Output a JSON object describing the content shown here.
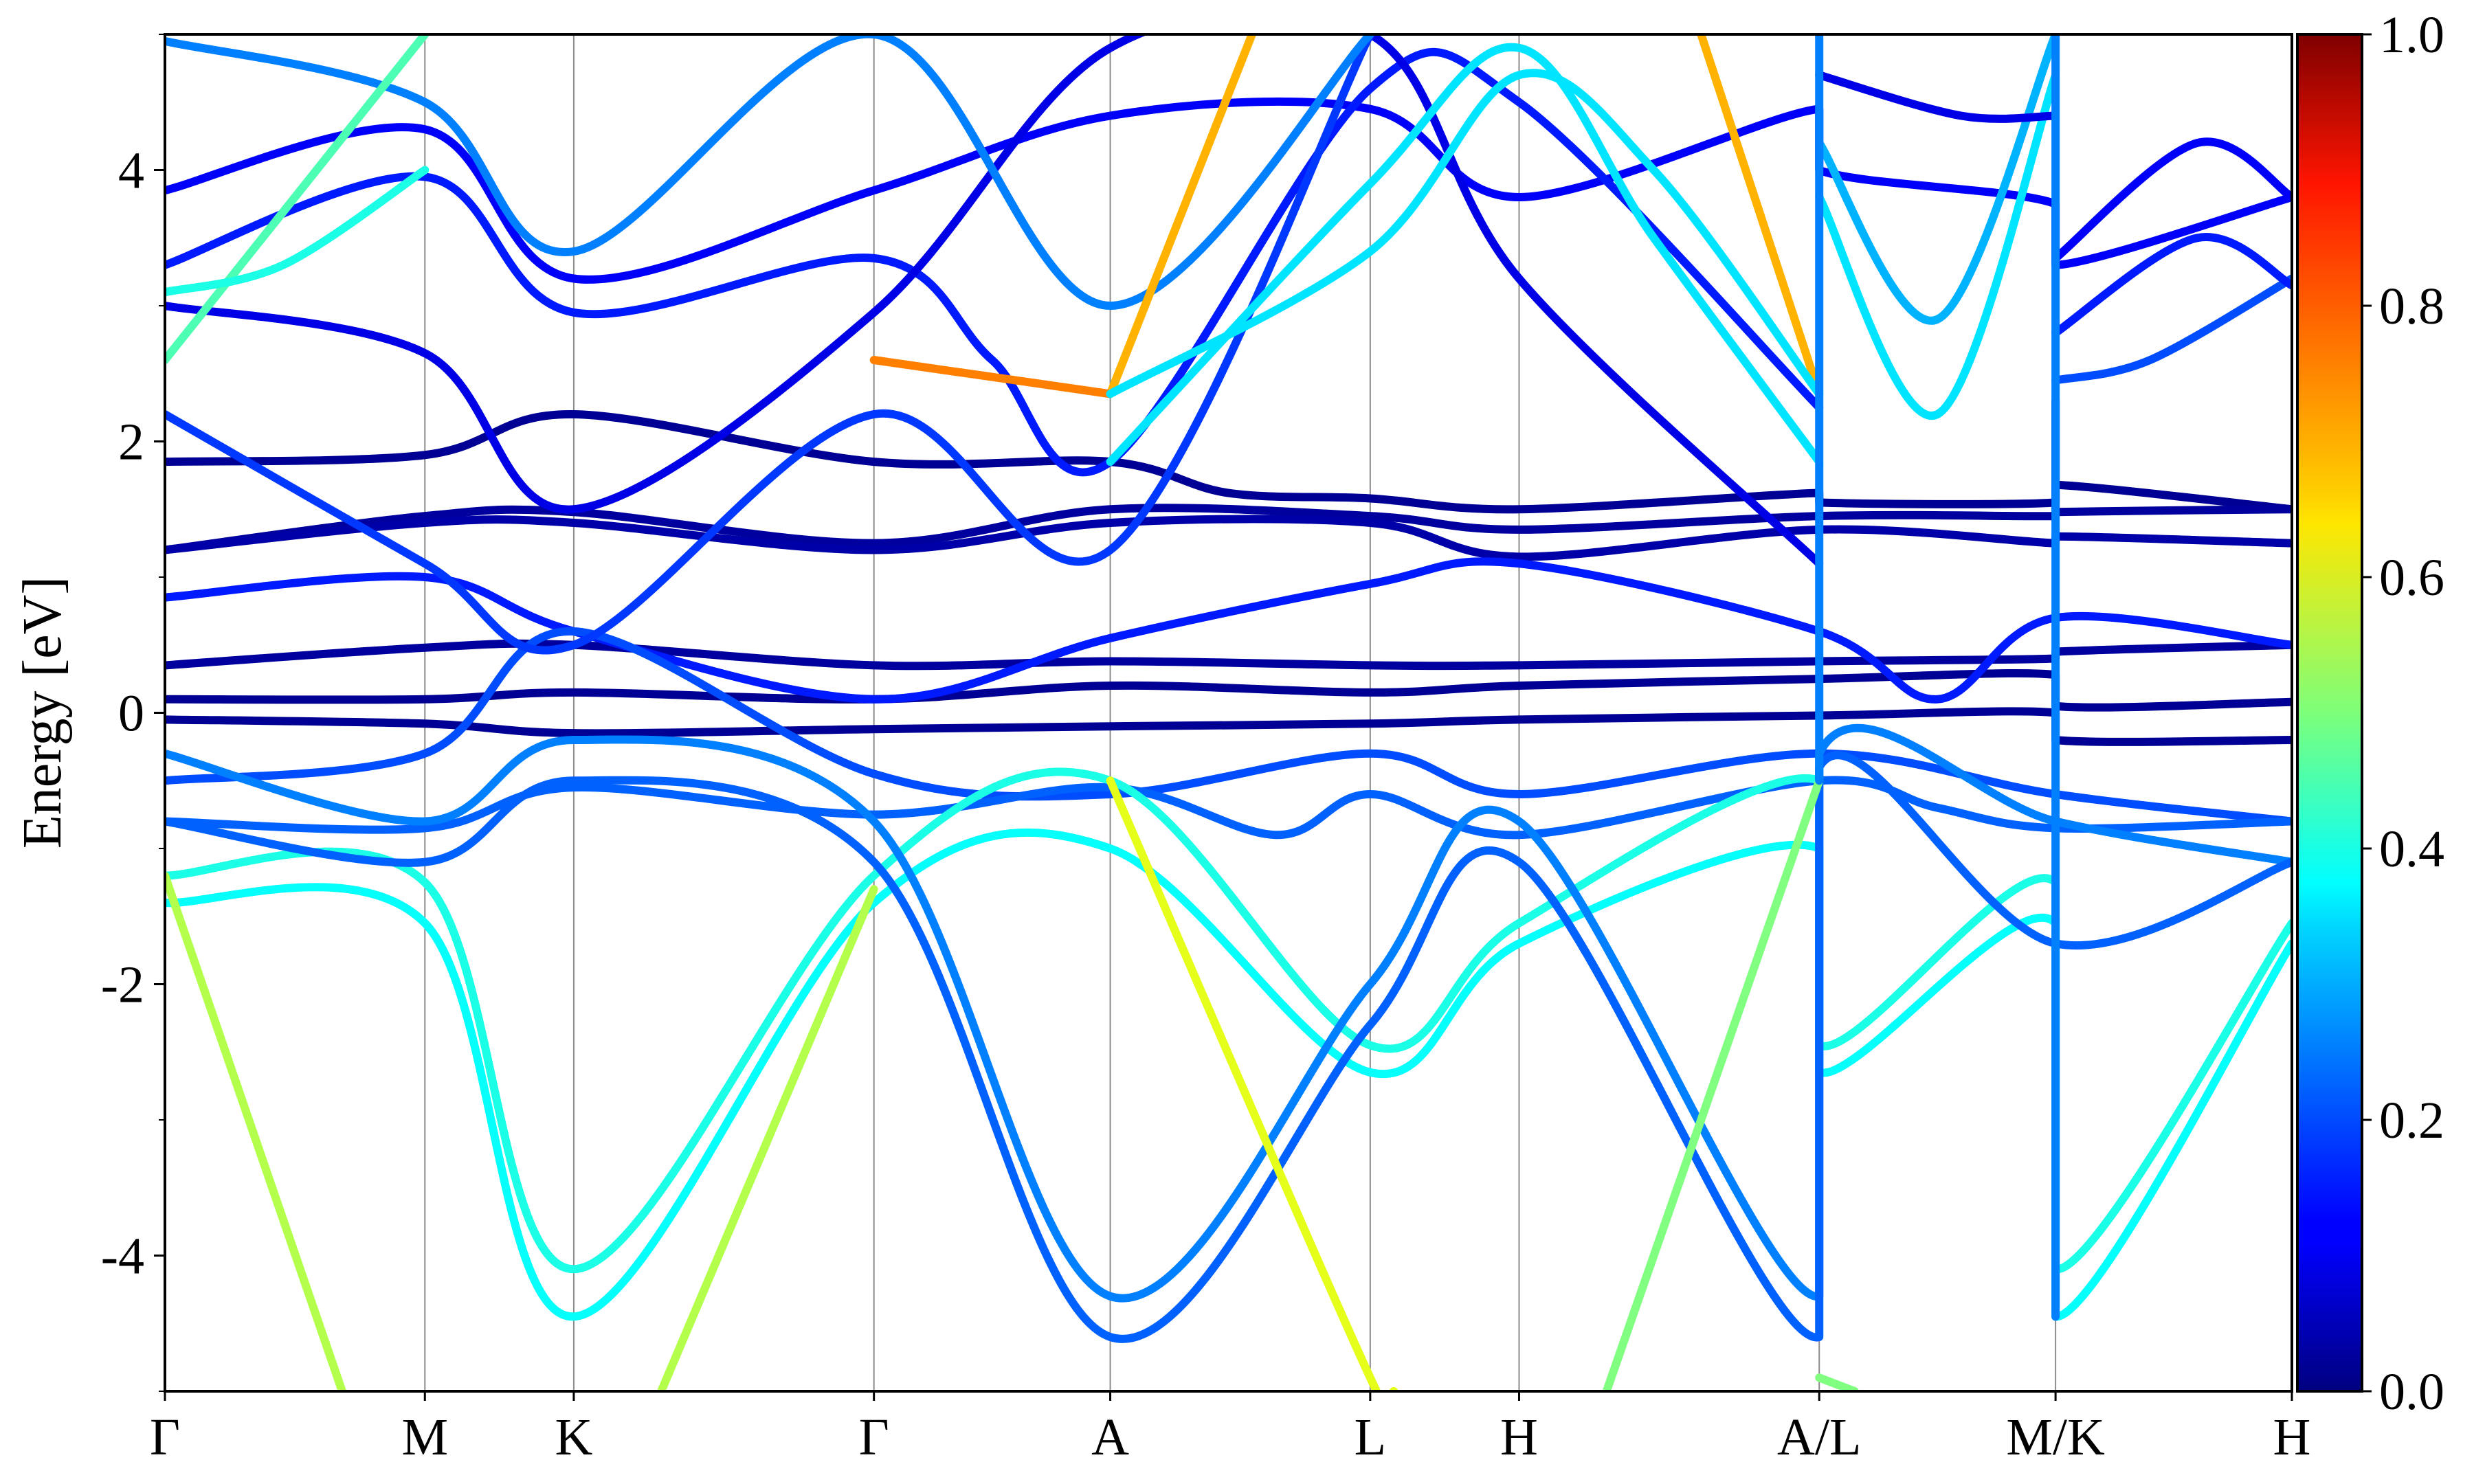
{
  "chart_data": {
    "type": "line",
    "title": "",
    "ylabel": "Energy [eV]",
    "xlabel": "",
    "ylim": [
      -5,
      5
    ],
    "yticks": [
      {
        "value": 4,
        "label": "4"
      },
      {
        "value": 2,
        "label": "2"
      },
      {
        "value": 0,
        "label": "0"
      },
      {
        "value": -2,
        "label": "-2"
      },
      {
        "value": -4,
        "label": "-4"
      }
    ],
    "kpath": {
      "range": [
        0,
        9
      ],
      "points": [
        {
          "label": "Γ",
          "x": 0
        },
        {
          "label": "M",
          "x": 1.1
        },
        {
          "label": "K",
          "x": 1.73
        },
        {
          "label": "Γ",
          "x": 3.0
        },
        {
          "label": "A",
          "x": 4.0
        },
        {
          "label": "L",
          "x": 5.1
        },
        {
          "label": "H",
          "x": 5.73
        },
        {
          "label": "A/L",
          "x": 7.0
        },
        {
          "label": "M/K",
          "x": 8.0
        },
        {
          "label": "H",
          "x": 9.0
        }
      ]
    },
    "colorbar": {
      "colormap": "jet",
      "range": [
        0.0,
        1.0
      ],
      "ticks": [
        {
          "value": 1.0,
          "label": "1.0"
        },
        {
          "value": 0.8,
          "label": "0.8"
        },
        {
          "value": 0.6,
          "label": "0.6"
        },
        {
          "value": 0.4,
          "label": "0.4"
        },
        {
          "value": 0.2,
          "label": "0.2"
        },
        {
          "value": 0.0,
          "label": "0.0"
        }
      ]
    },
    "grid": "vertical lines at high-symmetry points",
    "series": [
      {
        "w": 0.02,
        "pts": [
          [
            0,
            1.85
          ],
          [
            1.1,
            1.9
          ],
          [
            1.73,
            2.2
          ],
          [
            3.0,
            1.85
          ],
          [
            4.0,
            1.85
          ],
          [
            4.5,
            1.62
          ],
          [
            5.1,
            1.58
          ],
          [
            5.73,
            1.5
          ],
          [
            7.0,
            1.62
          ],
          [
            7.0,
            1.55
          ],
          [
            8.0,
            1.55
          ],
          [
            8.0,
            1.68
          ],
          [
            9.0,
            1.5
          ]
        ]
      },
      {
        "w": 0.03,
        "pts": [
          [
            0,
            1.2
          ],
          [
            1.1,
            1.45
          ],
          [
            1.73,
            1.48
          ],
          [
            3.0,
            1.25
          ],
          [
            4.0,
            1.5
          ],
          [
            5.1,
            1.45
          ],
          [
            5.73,
            1.35
          ],
          [
            7.0,
            1.45
          ],
          [
            8.0,
            1.45
          ],
          [
            8.0,
            1.48
          ],
          [
            9.0,
            1.5
          ]
        ]
      },
      {
        "w": 0.04,
        "pts": [
          [
            0,
            1.2
          ],
          [
            1.1,
            1.4
          ],
          [
            1.73,
            1.4
          ],
          [
            3.0,
            1.2
          ],
          [
            4.0,
            1.4
          ],
          [
            5.1,
            1.4
          ],
          [
            5.73,
            1.15
          ],
          [
            7.0,
            1.35
          ],
          [
            8.0,
            1.25
          ],
          [
            8.0,
            1.3
          ],
          [
            9.0,
            1.25
          ]
        ]
      },
      {
        "w": 0.03,
        "pts": [
          [
            0,
            0.35
          ],
          [
            1.1,
            0.48
          ],
          [
            1.73,
            0.5
          ],
          [
            3.0,
            0.35
          ],
          [
            4.0,
            0.38
          ],
          [
            5.1,
            0.35
          ],
          [
            5.73,
            0.35
          ],
          [
            7.0,
            0.38
          ],
          [
            8.0,
            0.4
          ],
          [
            8.0,
            0.45
          ],
          [
            9.0,
            0.5
          ]
        ]
      },
      {
        "w": 0.02,
        "pts": [
          [
            0,
            0.1
          ],
          [
            1.1,
            0.1
          ],
          [
            1.73,
            0.15
          ],
          [
            3.0,
            0.1
          ],
          [
            4.0,
            0.2
          ],
          [
            5.1,
            0.15
          ],
          [
            5.73,
            0.2
          ],
          [
            7.0,
            0.25
          ],
          [
            8.0,
            0.28
          ],
          [
            8.0,
            0.05
          ],
          [
            9.0,
            0.08
          ]
        ]
      },
      {
        "w": 0.02,
        "pts": [
          [
            0,
            -0.05
          ],
          [
            1.1,
            -0.08
          ],
          [
            1.73,
            -0.15
          ],
          [
            3.0,
            -0.12
          ],
          [
            4.0,
            -0.1
          ],
          [
            5.1,
            -0.08
          ],
          [
            5.73,
            -0.05
          ],
          [
            7.0,
            -0.02
          ],
          [
            8.0,
            0.0
          ],
          [
            8.0,
            -0.2
          ],
          [
            9.0,
            -0.2
          ]
        ]
      },
      {
        "w": 0.15,
        "pts": [
          [
            0,
            0.85
          ],
          [
            1.1,
            1.0
          ],
          [
            1.73,
            0.6
          ],
          [
            3.0,
            0.1
          ],
          [
            4.0,
            0.55
          ],
          [
            5.1,
            0.95
          ],
          [
            5.73,
            1.1
          ],
          [
            7.0,
            0.6
          ],
          [
            7.5,
            0.1
          ],
          [
            8.0,
            0.7
          ],
          [
            9.0,
            0.5
          ]
        ]
      },
      {
        "w": 0.2,
        "pts": [
          [
            0,
            -0.5
          ],
          [
            1.1,
            -0.3
          ],
          [
            1.73,
            0.6
          ],
          [
            3.0,
            -0.45
          ],
          [
            4.0,
            -0.6
          ],
          [
            5.1,
            -0.3
          ],
          [
            5.73,
            -0.6
          ],
          [
            7.0,
            -0.3
          ],
          [
            8.0,
            -0.6
          ],
          [
            9.0,
            -0.8
          ]
        ]
      },
      {
        "w": 0.22,
        "pts": [
          [
            0,
            -0.8
          ],
          [
            1.1,
            -0.85
          ],
          [
            1.73,
            -0.55
          ],
          [
            3.0,
            -0.75
          ],
          [
            4.0,
            -0.55
          ],
          [
            4.7,
            -0.9
          ],
          [
            5.1,
            -0.6
          ],
          [
            5.73,
            -0.9
          ],
          [
            7.0,
            -0.5
          ],
          [
            7.5,
            -0.7
          ],
          [
            8.0,
            -0.85
          ],
          [
            9.0,
            -0.8
          ]
        ]
      },
      {
        "w": 0.4,
        "pts": [
          [
            0,
            -1.2
          ],
          [
            1.1,
            -1.25
          ],
          [
            1.73,
            -4.1
          ],
          [
            3.0,
            -1.2
          ],
          [
            4.0,
            -0.5
          ],
          [
            5.1,
            -2.45
          ],
          [
            5.73,
            -1.55
          ],
          [
            7.0,
            -0.5
          ],
          [
            7.0,
            -2.45
          ],
          [
            8.0,
            -1.25
          ],
          [
            8.0,
            -4.1
          ],
          [
            9.0,
            -1.55
          ]
        ]
      },
      {
        "w": 0.38,
        "pts": [
          [
            0,
            -1.4
          ],
          [
            1.1,
            -1.55
          ],
          [
            1.73,
            -4.45
          ],
          [
            3.0,
            -1.4
          ],
          [
            4.0,
            -1.0
          ],
          [
            5.1,
            -2.65
          ],
          [
            5.73,
            -1.7
          ],
          [
            7.0,
            -1.0
          ],
          [
            7.0,
            -2.65
          ],
          [
            8.0,
            -1.55
          ],
          [
            8.0,
            -4.45
          ],
          [
            9.0,
            -1.7
          ]
        ]
      },
      {
        "w": 0.25,
        "pts": [
          [
            0,
            -0.3
          ],
          [
            1.1,
            -0.8
          ],
          [
            1.73,
            -0.2
          ],
          [
            3.0,
            -0.8
          ],
          [
            4.0,
            -4.3
          ],
          [
            5.1,
            -2.0
          ],
          [
            5.73,
            -0.8
          ],
          [
            7.0,
            -4.3
          ],
          [
            7.0,
            -0.3
          ],
          [
            8.0,
            -0.8
          ],
          [
            9.0,
            -1.1
          ]
        ]
      },
      {
        "w": 0.22,
        "pts": [
          [
            0,
            -0.8
          ],
          [
            1.1,
            -1.1
          ],
          [
            1.73,
            -0.5
          ],
          [
            3.0,
            -1.1
          ],
          [
            4.0,
            -4.6
          ],
          [
            5.1,
            -2.3
          ],
          [
            5.73,
            -1.1
          ],
          [
            7.0,
            -4.6
          ],
          [
            7.0,
            -0.4
          ],
          [
            8.0,
            -1.7
          ],
          [
            9.0,
            -1.1
          ]
        ]
      },
      {
        "w": 0.55,
        "pts": [
          [
            0,
            -1.2
          ],
          [
            0.75,
            -5.0
          ]
        ]
      },
      {
        "w": 0.55,
        "pts": [
          [
            2.1,
            -5.0
          ],
          [
            3.0,
            -1.3
          ]
        ]
      },
      {
        "w": 0.6,
        "pts": [
          [
            4.0,
            -0.5
          ],
          [
            5.1,
            -4.9
          ],
          [
            5.2,
            -5.0
          ]
        ]
      },
      {
        "w": 0.5,
        "pts": [
          [
            6.1,
            -5.0
          ],
          [
            7.0,
            -0.5
          ]
        ]
      },
      {
        "w": 0.5,
        "pts": [
          [
            7.0,
            -4.9
          ],
          [
            7.15,
            -5.0
          ]
        ]
      },
      {
        "w": 0.12,
        "pts": [
          [
            0,
            3.85
          ],
          [
            1.1,
            4.3
          ],
          [
            1.73,
            3.2
          ],
          [
            3.0,
            3.85
          ],
          [
            4.0,
            4.4
          ],
          [
            5.1,
            4.45
          ],
          [
            5.73,
            3.8
          ],
          [
            7.0,
            4.45
          ],
          [
            7.0,
            4.0
          ],
          [
            8.0,
            3.75
          ],
          [
            8.0,
            3.3
          ],
          [
            9.0,
            3.8
          ]
        ]
      },
      {
        "w": 0.15,
        "pts": [
          [
            0,
            3.3
          ],
          [
            1.1,
            3.95
          ],
          [
            1.73,
            2.95
          ],
          [
            3.0,
            3.35
          ],
          [
            3.5,
            2.6
          ],
          [
            4.0,
            1.85
          ],
          [
            5.1,
            4.6
          ],
          [
            5.73,
            4.5
          ],
          [
            7.0,
            2.25
          ]
        ]
      },
      {
        "w": 0.1,
        "pts": [
          [
            0,
            3.0
          ],
          [
            1.1,
            2.65
          ],
          [
            1.73,
            1.5
          ],
          [
            3.0,
            2.95
          ],
          [
            4.0,
            4.9
          ],
          [
            5.1,
            5.0
          ],
          [
            5.73,
            3.2
          ],
          [
            7.0,
            1.1
          ]
        ]
      },
      {
        "w": 0.18,
        "pts": [
          [
            0,
            2.2
          ],
          [
            1.1,
            1.1
          ],
          [
            1.73,
            0.5
          ],
          [
            3.0,
            2.2
          ],
          [
            4.0,
            1.2
          ],
          [
            5.1,
            5.0
          ]
        ]
      },
      {
        "w": 0.25,
        "pts": [
          [
            0,
            4.95
          ],
          [
            1.1,
            4.5
          ],
          [
            1.73,
            3.4
          ],
          [
            3.0,
            5.0
          ],
          [
            4.0,
            3.0
          ],
          [
            5.1,
            5.0
          ]
        ]
      },
      {
        "w": 0.45,
        "pts": [
          [
            0,
            2.6
          ],
          [
            1.1,
            5.0
          ]
        ]
      },
      {
        "w": 0.4,
        "pts": [
          [
            0,
            3.1
          ],
          [
            0.5,
            3.3
          ],
          [
            1.1,
            4.0
          ]
        ]
      },
      {
        "w": 0.7,
        "pts": [
          [
            4.0,
            2.35
          ],
          [
            4.6,
            5.0
          ]
        ]
      },
      {
        "w": 0.7,
        "pts": [
          [
            6.5,
            5.0
          ],
          [
            7.0,
            2.35
          ]
        ]
      },
      {
        "w": 0.75,
        "pts": [
          [
            3.0,
            2.6
          ],
          [
            4.0,
            2.35
          ]
        ]
      },
      {
        "w": 0.35,
        "pts": [
          [
            4.0,
            2.35
          ],
          [
            5.1,
            3.4
          ],
          [
            5.73,
            4.7
          ],
          [
            6.3,
            4.0
          ],
          [
            7.0,
            2.35
          ]
        ]
      },
      {
        "w": 0.35,
        "pts": [
          [
            4.0,
            1.85
          ],
          [
            5.1,
            3.9
          ],
          [
            5.73,
            4.9
          ],
          [
            6.3,
            3.5
          ],
          [
            7.0,
            1.85
          ]
        ]
      },
      {
        "w": 0.35,
        "pts": [
          [
            7.0,
            3.8
          ],
          [
            7.5,
            2.2
          ],
          [
            8.0,
            4.7
          ]
        ]
      },
      {
        "w": 0.3,
        "pts": [
          [
            7.0,
            4.2
          ],
          [
            7.5,
            2.9
          ],
          [
            8.0,
            5.0
          ]
        ]
      },
      {
        "w": 0.2,
        "pts": [
          [
            8.0,
            2.45
          ],
          [
            8.4,
            2.6
          ],
          [
            9.0,
            3.2
          ]
        ]
      },
      {
        "w": 0.15,
        "pts": [
          [
            8.0,
            2.8
          ],
          [
            8.6,
            3.5
          ],
          [
            9.0,
            3.15
          ]
        ]
      },
      {
        "w": 0.12,
        "pts": [
          [
            8.0,
            3.35
          ],
          [
            8.6,
            4.2
          ],
          [
            9.0,
            3.8
          ]
        ]
      },
      {
        "w": 0.1,
        "pts": [
          [
            7.0,
            4.7
          ],
          [
            7.6,
            4.4
          ],
          [
            8.0,
            4.4
          ]
        ]
      },
      {
        "w": 0.05,
        "pts": [
          [
            8.0,
            2.3
          ],
          [
            8.0,
            1.5
          ]
        ]
      },
      {
        "w": 0.25,
        "pts": [
          [
            7.0,
            -0.5
          ],
          [
            7.0,
            5.0
          ]
        ]
      },
      {
        "w": 0.25,
        "pts": [
          [
            8.0,
            -4.45
          ],
          [
            8.0,
            5.0
          ]
        ]
      }
    ]
  }
}
